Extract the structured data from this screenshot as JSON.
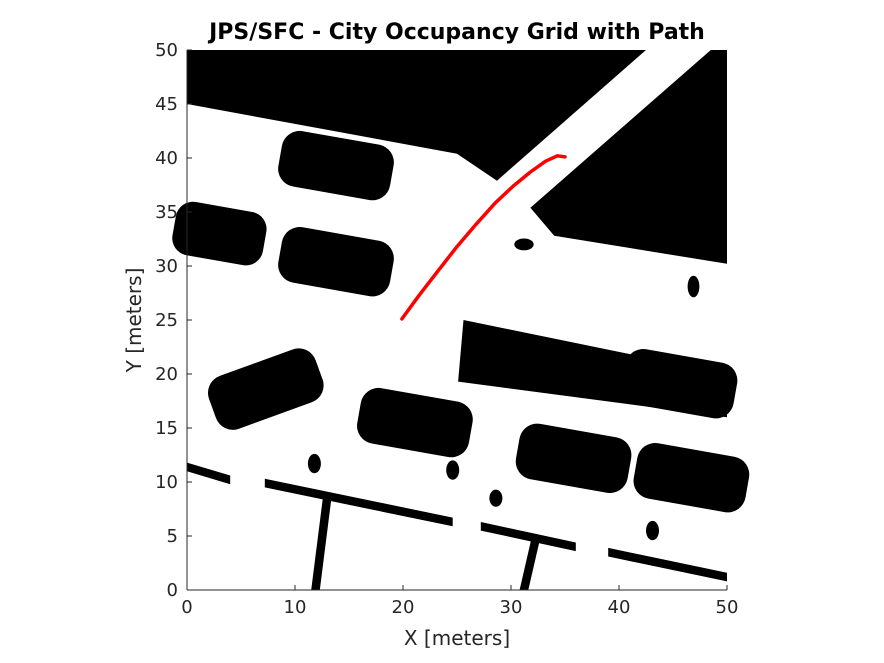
{
  "chart_data": {
    "type": "occupancy-grid",
    "title": "JPS/SFC - City Occupancy Grid with Path",
    "xlabel": "X [meters]",
    "ylabel": "Y [meters]",
    "xlim": [
      0,
      50
    ],
    "ylim": [
      0,
      50
    ],
    "xticks": [
      0,
      10,
      20,
      30,
      40,
      50
    ],
    "yticks": [
      0,
      5,
      10,
      15,
      20,
      25,
      30,
      35,
      40,
      45,
      50
    ],
    "grid": false,
    "colors": {
      "occupied": "#000000",
      "free": "#ffffff",
      "path": "#ff0000"
    },
    "obstacles": [
      {
        "name": "building-top-left",
        "shape": "polygon",
        "points": [
          [
            0,
            50
          ],
          [
            42.5,
            50
          ],
          [
            28.7,
            37.9
          ],
          [
            25,
            40.4
          ],
          [
            0,
            45
          ]
        ]
      },
      {
        "name": "building-top-right",
        "shape": "polygon",
        "points": [
          [
            48.5,
            50
          ],
          [
            50,
            50
          ],
          [
            50,
            30.2
          ],
          [
            34,
            32.8
          ],
          [
            31.8,
            35.4
          ]
        ]
      },
      {
        "name": "building-middle-right",
        "shape": "polygon",
        "points": [
          [
            25.6,
            25
          ],
          [
            50,
            20
          ],
          [
            50,
            16
          ],
          [
            25.1,
            19.3
          ]
        ]
      },
      {
        "name": "car-1",
        "shape": "rotated-rect",
        "center": [
          13.8,
          39.3
        ],
        "size": [
          10.5,
          5.2
        ],
        "angle": -10
      },
      {
        "name": "car-2",
        "shape": "rotated-rect",
        "center": [
          3,
          33
        ],
        "size": [
          8.5,
          5
        ],
        "angle": -10
      },
      {
        "name": "car-3",
        "shape": "rotated-rect",
        "center": [
          13.8,
          30.4
        ],
        "size": [
          10.5,
          5.2
        ],
        "angle": -10
      },
      {
        "name": "car-4",
        "shape": "rotated-rect",
        "center": [
          7.3,
          18.6
        ],
        "size": [
          10.5,
          5.2
        ],
        "angle": 20
      },
      {
        "name": "car-5",
        "shape": "rotated-rect",
        "center": [
          21.1,
          15.5
        ],
        "size": [
          10.5,
          5.2
        ],
        "angle": -10
      },
      {
        "name": "car-6",
        "shape": "rotated-rect",
        "center": [
          35.8,
          12.2
        ],
        "size": [
          10.5,
          5.2
        ],
        "angle": -10
      },
      {
        "name": "car-7",
        "shape": "rotated-rect",
        "center": [
          46.7,
          10.4
        ],
        "size": [
          10.5,
          5.2
        ],
        "angle": -10
      },
      {
        "name": "car-8",
        "shape": "rotated-rect",
        "center": [
          45.6,
          19.1
        ],
        "size": [
          10.5,
          5.2
        ],
        "angle": -10
      },
      {
        "name": "barrier-1",
        "shape": "polygon",
        "points": [
          [
            0,
            11.8
          ],
          [
            4,
            10.6
          ],
          [
            4,
            9.8
          ],
          [
            0,
            11
          ]
        ]
      },
      {
        "name": "barrier-2",
        "shape": "polygon",
        "points": [
          [
            7.2,
            10.3
          ],
          [
            24.6,
            6.7
          ],
          [
            24.6,
            5.9
          ],
          [
            7.2,
            9.5
          ]
        ]
      },
      {
        "name": "barrier-3",
        "shape": "polygon",
        "points": [
          [
            27.2,
            6.3
          ],
          [
            36,
            4.4
          ],
          [
            36,
            3.6
          ],
          [
            27.2,
            5.5
          ]
        ]
      },
      {
        "name": "barrier-4",
        "shape": "polygon",
        "points": [
          [
            39,
            3.9
          ],
          [
            50,
            1.6
          ],
          [
            50,
            0.8
          ],
          [
            39,
            3.1
          ]
        ]
      },
      {
        "name": "barrier-post-1",
        "shape": "polygon",
        "points": [
          [
            13.4,
            8.7
          ],
          [
            12.3,
            0
          ],
          [
            11.5,
            0
          ],
          [
            12.6,
            8.7
          ]
        ]
      },
      {
        "name": "barrier-post-2",
        "shape": "polygon",
        "points": [
          [
            32.7,
            4.8
          ],
          [
            31.6,
            0
          ],
          [
            30.8,
            0
          ],
          [
            31.9,
            4.8
          ]
        ]
      },
      {
        "name": "bush-1",
        "shape": "blob",
        "center": [
          11.8,
          11.7
        ],
        "size": [
          1.2,
          1.8
        ]
      },
      {
        "name": "bush-2",
        "shape": "blob",
        "center": [
          24.6,
          11.1
        ],
        "size": [
          1.2,
          1.8
        ]
      },
      {
        "name": "bush-3",
        "shape": "blob",
        "center": [
          28.6,
          8.5
        ],
        "size": [
          1.2,
          1.6
        ]
      },
      {
        "name": "bush-4",
        "shape": "blob",
        "center": [
          43.1,
          5.5
        ],
        "size": [
          1.2,
          1.8
        ]
      },
      {
        "name": "bush-5",
        "shape": "blob",
        "center": [
          31.2,
          32
        ],
        "size": [
          1.8,
          1.1
        ]
      },
      {
        "name": "bush-6",
        "shape": "blob",
        "center": [
          46.9,
          28.1
        ],
        "size": [
          1.1,
          2
        ]
      },
      {
        "name": "bush-7",
        "shape": "blob",
        "center": [
          0.5,
          35.5
        ],
        "size": [
          0.8,
          0.8
        ]
      }
    ],
    "path": {
      "name": "planned-path",
      "x": [
        19.9,
        21.5,
        23.2,
        25.0,
        26.8,
        28.5,
        30.2,
        31.8,
        33.2,
        34.3,
        35.0
      ],
      "y": [
        25.1,
        27.3,
        29.5,
        31.8,
        33.9,
        35.8,
        37.4,
        38.7,
        39.7,
        40.2,
        40.1
      ]
    }
  }
}
